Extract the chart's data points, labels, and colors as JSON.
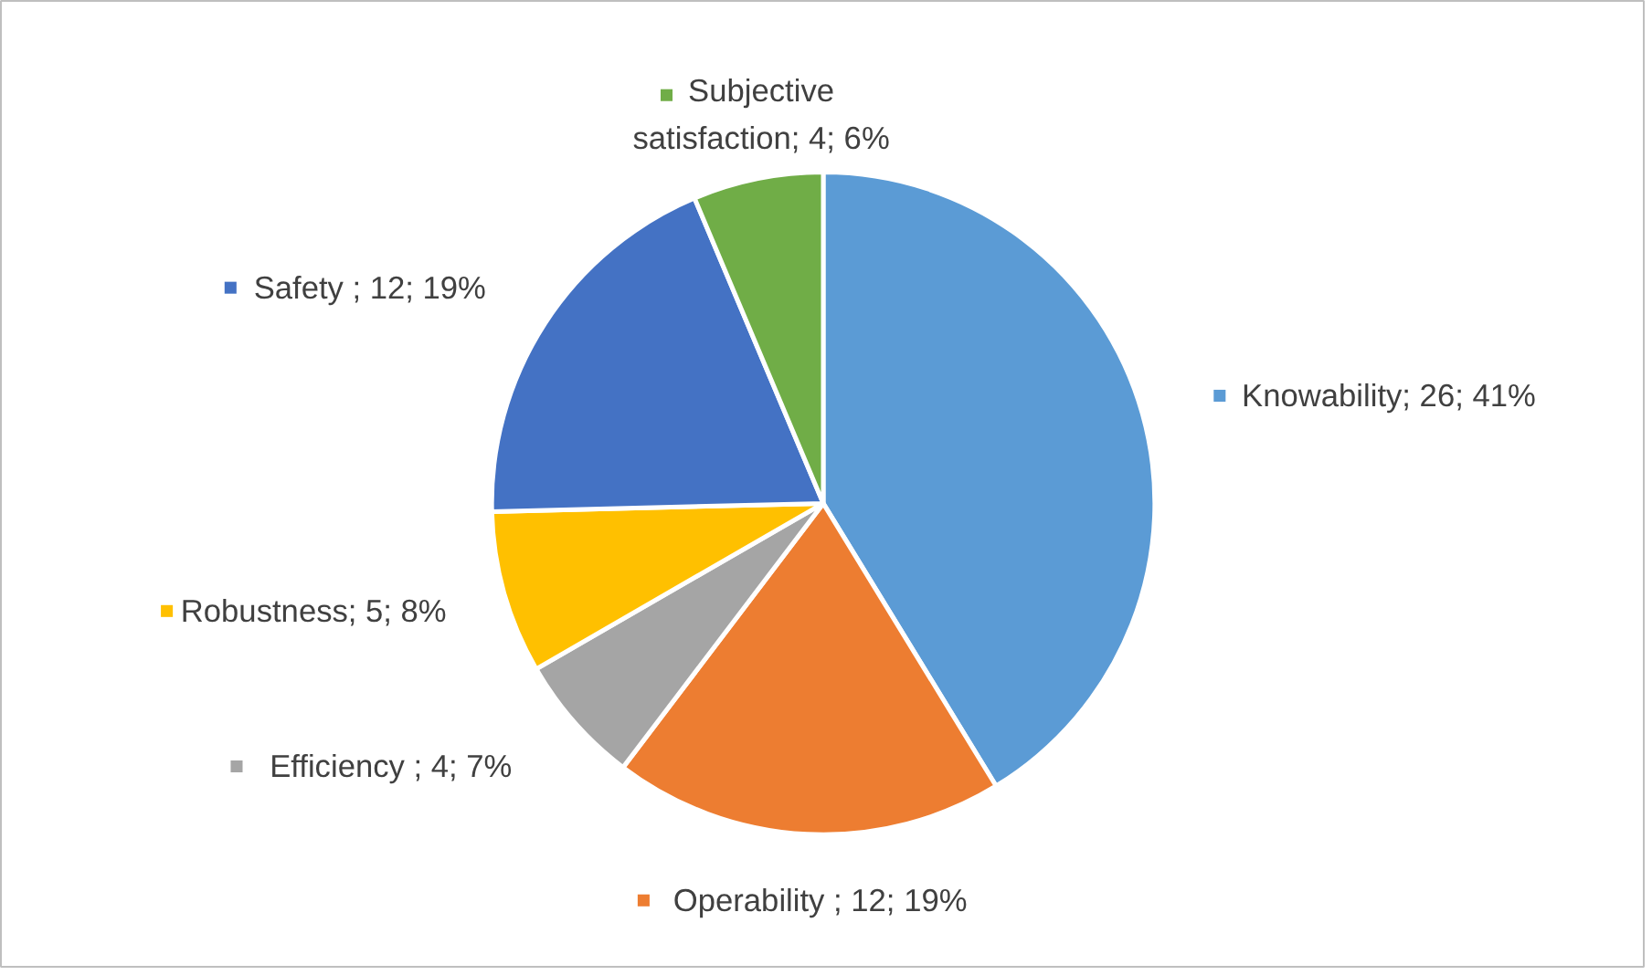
{
  "chart_data": {
    "type": "pie",
    "categories": [
      "Knowability",
      "Operability",
      "Efficiency",
      "Robustness",
      "Safety",
      "Subjective satisfaction"
    ],
    "values": [
      26,
      12,
      4,
      5,
      12,
      4
    ],
    "colors": [
      "#5b9bd5",
      "#ed7d31",
      "#a5a5a5",
      "#ffc000",
      "#4472c4",
      "#70ad47"
    ],
    "value_labels": [
      "; 26; 41%",
      " ; 12; 19%",
      " ; 4; 7%",
      "; 5; 8%",
      " ; 12; 19%",
      "; 4; 6%"
    ],
    "legend": "top right"
  }
}
